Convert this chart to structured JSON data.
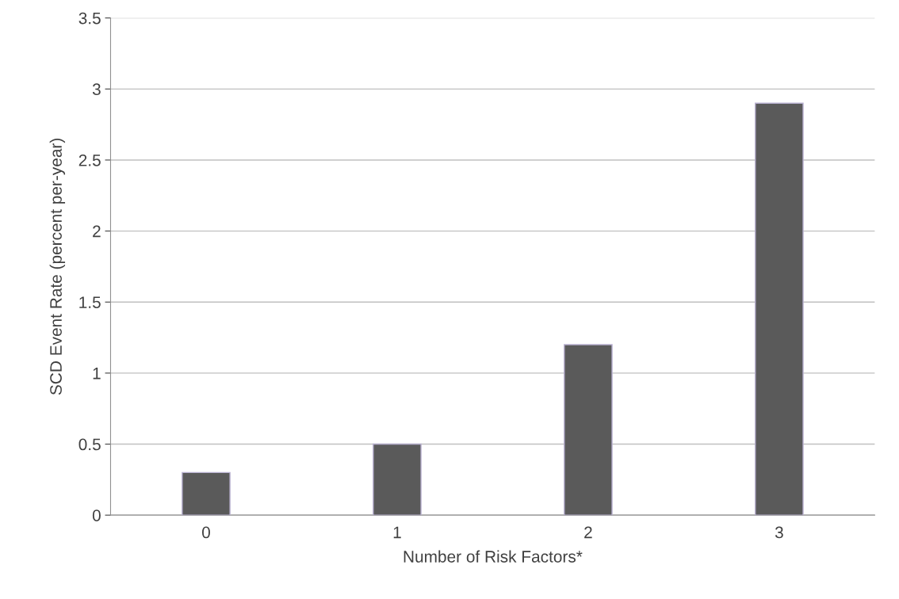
{
  "chart_data": {
    "type": "bar",
    "xlabel": "Number of Risk Factors*",
    "ylabel": "SCD Event Rate (percent per-year)",
    "categories": [
      "0",
      "1",
      "2",
      "3"
    ],
    "values": [
      0.3,
      0.5,
      1.2,
      2.9
    ],
    "color": "#5a5a5a",
    "ylim": [
      0,
      3.5
    ],
    "yticks": [
      0,
      0.5,
      1,
      1.5,
      2,
      2.5,
      3,
      3.5
    ],
    "grid": "y"
  }
}
